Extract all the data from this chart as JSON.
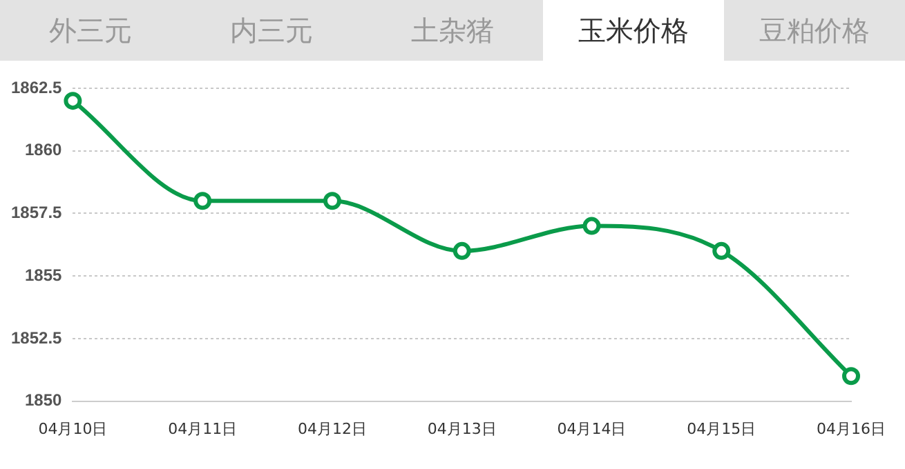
{
  "chart_data": {
    "type": "line",
    "title": "玉米价格",
    "annotations": [
      "外三元",
      "内三元",
      "土杂猪",
      "豆粕价格"
    ],
    "categories": [
      "04月10日",
      "04月11日",
      "04月12日",
      "04月13日",
      "04月14日",
      "04月15日",
      "04月16日"
    ],
    "series": [
      {
        "color": "#0a9b4a",
        "values": [
          1862,
          1858,
          1858,
          1856,
          1857,
          1856,
          1851
        ]
      }
    ],
    "ylim": [
      1850,
      1862.5
    ],
    "yticks": [
      1850,
      {
        "value": 1852.5,
        "label": "1852.5"
      },
      1855,
      {
        "value": 1857.5,
        "label": "1857.5"
      },
      1860,
      {
        "value": 1862.5,
        "label": "1862.5"
      }
    ],
    "grid": "y",
    "marker": "circle",
    "line_style": "solid",
    "legend": false
  }
}
